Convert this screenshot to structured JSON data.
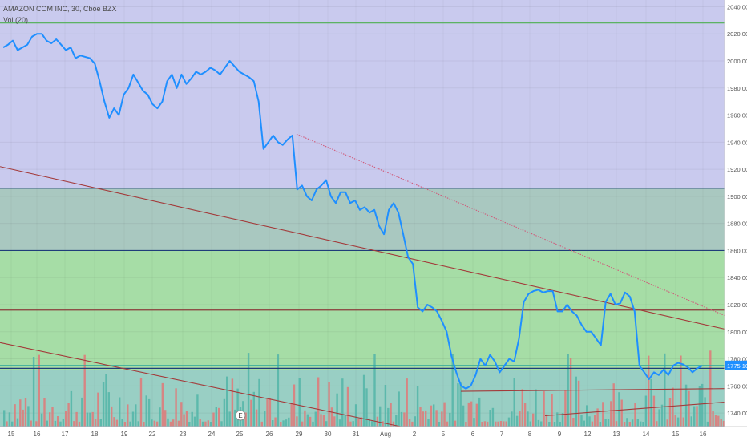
{
  "header": {
    "symbol_line": "AMAZON COM INC, 30, Cboe BZX",
    "volume_line": "Vol (20)"
  },
  "earnings_marker": "E",
  "last_price_label": "1775.10",
  "colors": {
    "price_line": "#1f8fff",
    "zone_purple": "#c9caee",
    "zone_teal": "#a9c8c0",
    "zone_green": "#a6dda6",
    "zone_bottom": "#99cfc4",
    "hline_green": "#4caf50",
    "hline_navy": "#1f3d7a",
    "hline_maroon": "#8a3a3a",
    "hline_teal": "#2aa79a",
    "trend_red": "#a33a3a",
    "trend_dotted": "#d05a7a",
    "vol_up": "#52b5a8",
    "vol_down": "#e07878",
    "axis_text": "#555555"
  },
  "chart_data": {
    "type": "line",
    "title": "AMAZON COM INC, 30, Cboe BZX",
    "x_ticks": [
      "15",
      "16",
      "17",
      "18",
      "19",
      "22",
      "23",
      "24",
      "25",
      "26",
      "29",
      "30",
      "31",
      "Aug",
      "2",
      "5",
      "6",
      "7",
      "8",
      "9",
      "12",
      "13",
      "14",
      "15",
      "16"
    ],
    "ylim": [
      1730,
      2045
    ],
    "y_ticks": [
      1740,
      1760,
      1780,
      1800,
      1820,
      1840,
      1860,
      1880,
      1900,
      1920,
      1940,
      1960,
      1980,
      2000,
      2020,
      2040
    ],
    "y_tick_labels": [
      "1740.00",
      "1760.00",
      "1780.00",
      "1800.00",
      "1820.00",
      "1840.00",
      "1860.00",
      "1880.00",
      "1900.00",
      "1920.00",
      "1940.00",
      "1960.00",
      "1980.00",
      "2000.00",
      "2020.00",
      "2040.00"
    ],
    "last_price": 1775.1,
    "series": [
      {
        "values": [
          2010,
          2012,
          2015,
          2008,
          2010,
          2012,
          2018,
          2020,
          2020,
          2015,
          2013,
          2016,
          2012,
          2008,
          2010,
          2002,
          2004,
          2003,
          2002,
          1998,
          1985,
          1970,
          1958,
          1965,
          1960,
          1975,
          1980,
          1990,
          1984,
          1978,
          1975,
          1968,
          1965,
          1970,
          1985,
          1990,
          1980,
          1990,
          1983,
          1987,
          1992,
          1990,
          1992,
          1995,
          1993,
          1990,
          1995,
          2000,
          1996,
          1992,
          1990,
          1988,
          1985,
          1970,
          1935,
          1940,
          1945,
          1940,
          1938,
          1942,
          1945,
          1905,
          1908,
          1900,
          1897,
          1905,
          1908,
          1912,
          1900,
          1895,
          1903,
          1903,
          1895,
          1897,
          1890,
          1892,
          1888,
          1890,
          1878,
          1872,
          1890,
          1895,
          1888,
          1872,
          1855,
          1850,
          1818,
          1815,
          1820,
          1818,
          1815,
          1808,
          1800,
          1782,
          1770,
          1760,
          1758,
          1760,
          1768,
          1780,
          1775,
          1783,
          1778,
          1770,
          1775,
          1780,
          1778,
          1795,
          1822,
          1828,
          1830,
          1831,
          1829,
          1830,
          1830,
          1815,
          1815,
          1820,
          1815,
          1812,
          1805,
          1800,
          1800,
          1795,
          1790,
          1822,
          1828,
          1820,
          1821,
          1829,
          1826,
          1815,
          1775,
          1770,
          1765,
          1770,
          1768,
          1772,
          1768,
          1775,
          1777,
          1776,
          1774,
          1770,
          1773,
          1775
        ]
      }
    ],
    "volume": {
      "label": "Vol (20)"
    },
    "horizontal_levels": [
      2028,
      1906,
      1860,
      1816,
      1775.1,
      1773,
      1730
    ],
    "zones": [
      {
        "from": 1906,
        "to": 2045,
        "color": "zone_purple"
      },
      {
        "from": 1860,
        "to": 1906,
        "color": "zone_teal"
      },
      {
        "from": 1772,
        "to": 1860,
        "color": "zone_green"
      },
      {
        "from": 1730,
        "to": 1772,
        "color": "zone_bottom"
      }
    ],
    "trend_lines": [
      {
        "from_y": 1922,
        "to_y": 1802,
        "style": "solid"
      },
      {
        "from_y": 1946,
        "to_y": 1812,
        "style": "dotted"
      },
      {
        "from_y": 1792,
        "to_y": 1730,
        "style": "solid"
      },
      {
        "from_y": 1738,
        "to_y": 1748,
        "style": "solid"
      },
      {
        "from_y": 1756,
        "to_y": 1758,
        "style": "solid"
      }
    ],
    "grid": true,
    "legend": "none"
  }
}
